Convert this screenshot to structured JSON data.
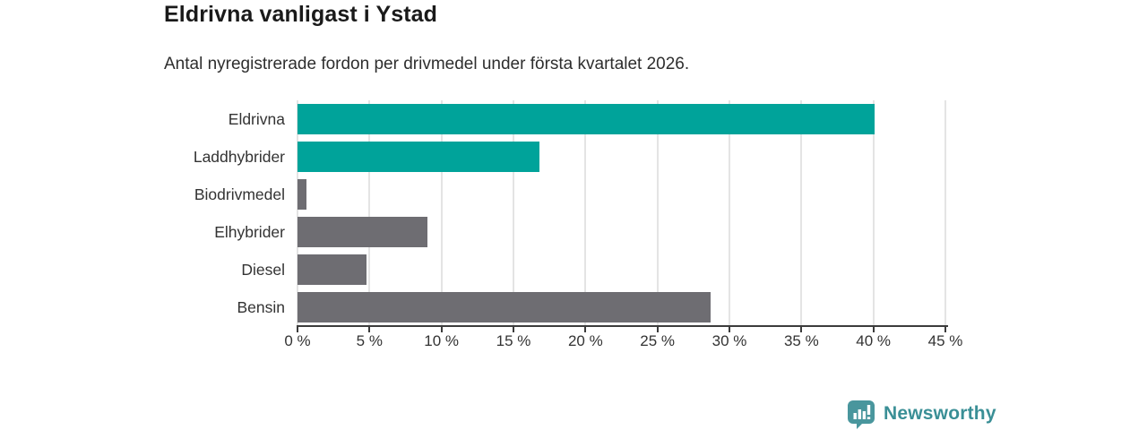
{
  "header": {
    "title": "Eldrivna vanligast i Ystad",
    "subtitle": "Antal nyregistrerade fordon per drivmedel under första kvartalet 2026."
  },
  "chart_data": {
    "type": "bar",
    "orientation": "horizontal",
    "title": "Eldrivna vanligast i Ystad",
    "subtitle": "Antal nyregistrerade fordon per drivmedel under första kvartalet 2026.",
    "categories": [
      "Eldrivna",
      "Laddhybrider",
      "Biodrivmedel",
      "Elhybrider",
      "Diesel",
      "Bensin"
    ],
    "values": [
      40.1,
      16.8,
      0.6,
      9.0,
      4.8,
      28.7
    ],
    "unit": "%",
    "bar_colors": [
      "#00a39a",
      "#00a39a",
      "#6e6d72",
      "#6e6d72",
      "#6e6d72",
      "#6e6d72"
    ],
    "xlim": [
      0,
      45
    ],
    "x_tick_values": [
      0,
      5,
      10,
      15,
      20,
      25,
      30,
      35,
      40,
      45
    ],
    "x_tick_labels": [
      "0 %",
      "5 %",
      "10 %",
      "15 %",
      "20 %",
      "25 %",
      "30 %",
      "35 %",
      "40 %",
      "45 %"
    ],
    "ylabel": "",
    "xlabel": "",
    "grid": "vertical",
    "legend": false
  },
  "branding": {
    "logo_text": "Newsworthy",
    "logo_color": "#3a8f96"
  },
  "colors": {
    "accent_teal": "#00a39a",
    "bar_gray": "#6e6d72",
    "gridline": "#e4e4e4",
    "axis": "#3c3c3c",
    "text": "#333333",
    "title": "#1a1a1a"
  }
}
